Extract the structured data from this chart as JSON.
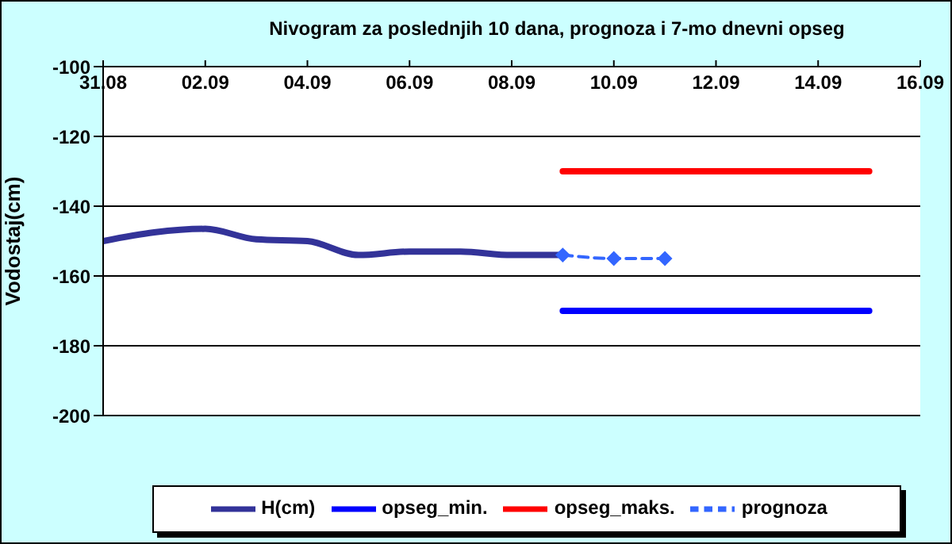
{
  "chart_data": {
    "type": "line",
    "title": "Nivogram za poslednjih 10 dana, prognoza i 7-mo dnevni opseg",
    "ylabel": "Vodostaj(cm)",
    "xlim": [
      "--08-31",
      "--09-16"
    ],
    "xticks": [
      {
        "value": "--08-31",
        "label": "31.08"
      },
      {
        "value": "--09-02",
        "label": "02.09"
      },
      {
        "value": "--09-04",
        "label": "04.09"
      },
      {
        "value": "--09-06",
        "label": "06.09"
      },
      {
        "value": "--09-08",
        "label": "08.09"
      },
      {
        "value": "--09-10",
        "label": "10.09"
      },
      {
        "value": "--09-12",
        "label": "12.09"
      },
      {
        "value": "--09-14",
        "label": "14.09"
      },
      {
        "value": "--09-16",
        "label": "16.09"
      }
    ],
    "ylim": [
      -200,
      -100
    ],
    "yticks": [
      -200,
      -180,
      -160,
      -140,
      -120,
      -100
    ],
    "grid": "y",
    "legend": "bottom",
    "series": [
      {
        "name": "H(cm)",
        "color": "#333399",
        "x": [
          "--08-31",
          "--09-01",
          "--09-02",
          "--09-03",
          "--09-04",
          "--09-05",
          "--09-06",
          "--09-07",
          "--09-08",
          "--09-09"
        ],
        "values": [
          -150,
          -147.5,
          -146.5,
          -149.5,
          -150,
          -154,
          -153,
          -153,
          -154,
          -154
        ],
        "marker": "none",
        "line_style": "solid"
      },
      {
        "name": "opseg_min.",
        "color": "#0000ff",
        "x": [
          "--09-09",
          "--09-15"
        ],
        "values": [
          -170,
          -170
        ],
        "marker": "none",
        "line_style": "solid"
      },
      {
        "name": "opseg_maks.",
        "color": "#ff0000",
        "x": [
          "--09-09",
          "--09-15"
        ],
        "values": [
          -130,
          -130
        ],
        "marker": "none",
        "line_style": "solid"
      },
      {
        "name": "prognoza",
        "color": "#3366ff",
        "x": [
          "--09-09",
          "--09-10",
          "--09-11"
        ],
        "values": [
          -154,
          -155,
          -155
        ],
        "marker": "diamond",
        "line_style": "dashed"
      }
    ]
  }
}
